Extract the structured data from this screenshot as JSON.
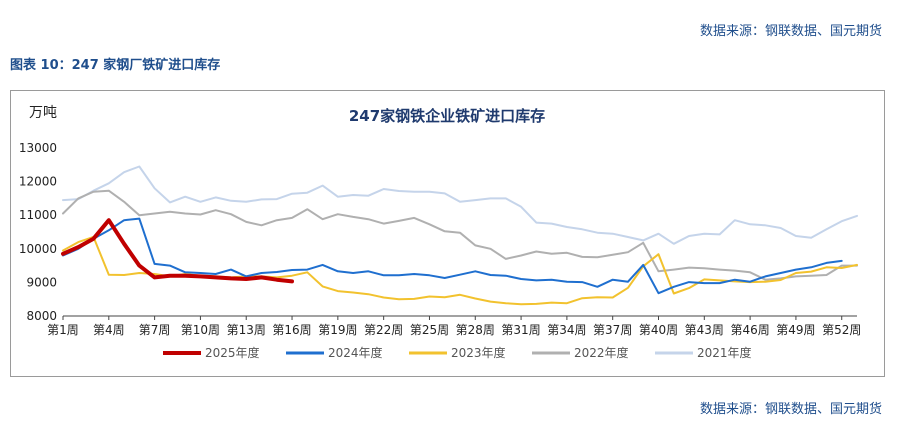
{
  "source_top": "数据来源：钢联数据、国元期货",
  "figure_title": "图表 10：247 家钢厂铁矿进口库存",
  "source_bottom": "数据来源：钢联数据、国元期货",
  "chart_data": {
    "type": "line",
    "title": "247家钢铁企业铁矿进口库存",
    "ylabel": "万吨",
    "ylim": [
      8000,
      13000
    ],
    "yticks": [
      8000,
      9000,
      10000,
      11000,
      12000,
      13000
    ],
    "x_tick_labels": [
      "第1周",
      "第4周",
      "第7周",
      "第10周",
      "第13周",
      "第16周",
      "第19周",
      "第22周",
      "第25周",
      "第28周",
      "第31周",
      "第34周",
      "第37周",
      "第40周",
      "第43周",
      "第46周",
      "第49周",
      "第52周"
    ],
    "x_tick_weeks": [
      1,
      4,
      7,
      10,
      13,
      16,
      19,
      22,
      25,
      28,
      31,
      34,
      37,
      40,
      43,
      46,
      49,
      52
    ],
    "xlim": [
      1,
      53
    ],
    "grid": false,
    "legend": "bottom",
    "series": [
      {
        "name": "2025年度",
        "color": "#c00000",
        "width": 4,
        "values": [
          9850,
          10050,
          10300,
          10850,
          10150,
          9500,
          9150,
          9200,
          9200,
          9180,
          9150,
          9120,
          9100,
          9150,
          9080,
          9030
        ]
      },
      {
        "name": "2024年度",
        "color": "#1f6fcf",
        "width": 2,
        "values": [
          9800,
          10000,
          10300,
          10550,
          10850,
          10900,
          9550,
          9500,
          9300,
          9280,
          9250,
          9380,
          9180,
          9280,
          9310,
          9370,
          9380,
          9520,
          9330,
          9280,
          9330,
          9210,
          9210,
          9250,
          9210,
          9130,
          9230,
          9330,
          9220,
          9200,
          9100,
          9060,
          9080,
          9020,
          9010,
          8870,
          9080,
          9020,
          9520,
          8680,
          8870,
          9010,
          8980,
          8980,
          9080,
          9020,
          9180,
          9280,
          9380,
          9450,
          9580,
          9640
        ]
      },
      {
        "name": "2023年度",
        "color": "#f2c22e",
        "width": 2,
        "values": [
          9950,
          10200,
          10350,
          9230,
          9220,
          9280,
          9250,
          9180,
          9250,
          9200,
          9180,
          9150,
          9180,
          9180,
          9150,
          9200,
          9300,
          8880,
          8740,
          8700,
          8650,
          8550,
          8500,
          8510,
          8580,
          8560,
          8630,
          8520,
          8430,
          8380,
          8350,
          8360,
          8400,
          8380,
          8530,
          8560,
          8550,
          8840,
          9480,
          9840,
          8670,
          8830,
          9090,
          9060,
          9030,
          9010,
          9020,
          9070,
          9280,
          9320,
          9450,
          9430,
          9520
        ]
      },
      {
        "name": "2022年度",
        "color": "#b0b0b0",
        "width": 2,
        "values": [
          11050,
          11500,
          11700,
          11730,
          11400,
          11000,
          11050,
          11100,
          11050,
          11020,
          11150,
          11030,
          10800,
          10700,
          10850,
          10920,
          11180,
          10880,
          11030,
          10950,
          10880,
          10750,
          10830,
          10920,
          10730,
          10520,
          10480,
          10100,
          10000,
          9700,
          9800,
          9920,
          9850,
          9880,
          9760,
          9750,
          9820,
          9900,
          10180,
          9330,
          9380,
          9440,
          9420,
          9380,
          9350,
          9300,
          9080,
          9120,
          9180,
          9200,
          9220,
          9500,
          9500
        ]
      },
      {
        "name": "2021年度",
        "color": "#c5d4ea",
        "width": 2,
        "values": [
          11450,
          11480,
          11730,
          11950,
          12280,
          12450,
          11800,
          11380,
          11550,
          11400,
          11530,
          11430,
          11400,
          11470,
          11480,
          11640,
          11670,
          11880,
          11550,
          11600,
          11580,
          11780,
          11720,
          11700,
          11700,
          11650,
          11400,
          11450,
          11500,
          11500,
          11250,
          10780,
          10750,
          10650,
          10580,
          10480,
          10450,
          10350,
          10250,
          10450,
          10150,
          10380,
          10450,
          10430,
          10850,
          10730,
          10700,
          10620,
          10380,
          10330,
          10580,
          10820,
          10980
        ]
      }
    ]
  }
}
